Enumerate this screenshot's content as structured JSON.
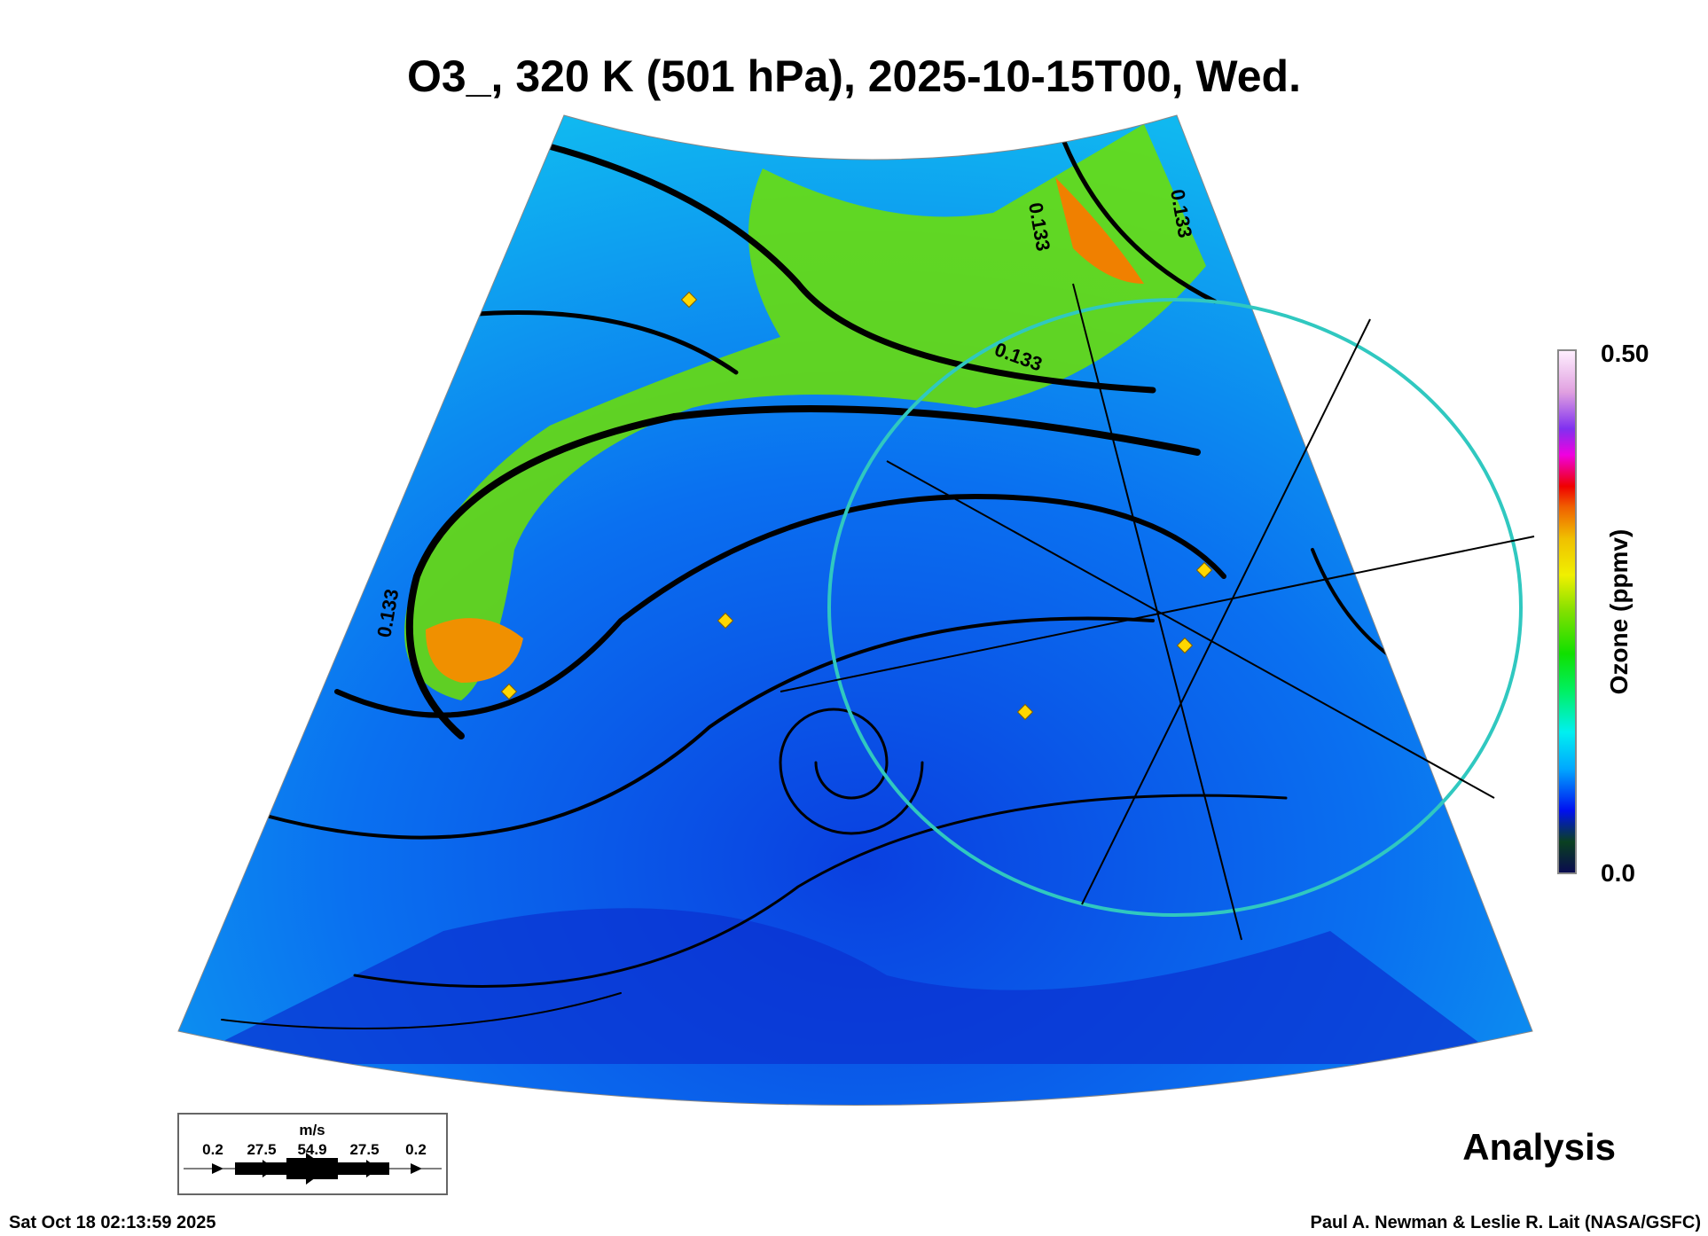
{
  "chart_data": {
    "type": "heatmap",
    "title": "O3_, 320 K (501 hPa), 2025-10-15T00, Wed.",
    "variable": "Ozone",
    "colorbar": {
      "label": "Ozone (ppmv)",
      "min_label": "0.0",
      "max_label": "0.50",
      "range": [
        0.0,
        0.5
      ]
    },
    "contour_labels": [
      "0.133",
      "0.133",
      "0.133",
      "0.133"
    ],
    "wind_legend": {
      "units": "m/s",
      "values": [
        "0.2",
        "27.5",
        "54.9",
        "27.5",
        "0.2"
      ]
    },
    "product": "Analysis",
    "colors": {
      "low": "#0a1a6e",
      "blue": "#0a3cf0",
      "cyan": "#10c8f0",
      "green": "#6ee000",
      "yellow": "#f0e800",
      "orange": "#f08000",
      "circle": "#30c8c0"
    }
  },
  "footer": {
    "timestamp": "Sat Oct 18 02:13:59 2025",
    "credit": "Paul A. Newman & Leslie R. Lait (NASA/GSFC)"
  }
}
